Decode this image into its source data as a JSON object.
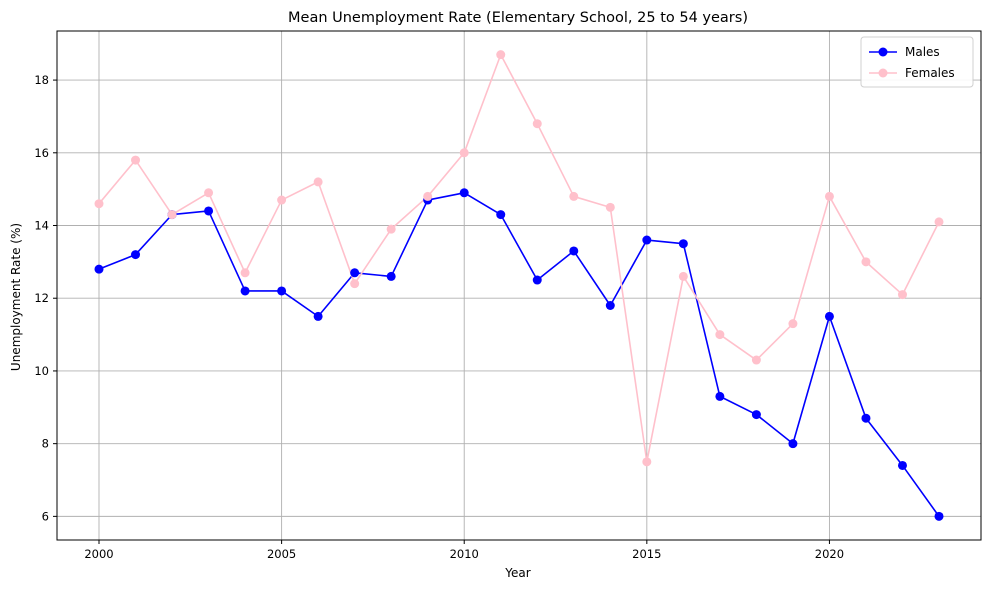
{
  "chart_data": {
    "type": "line",
    "title": "Mean Unemployment Rate (Elementary School, 25 to 54 years)",
    "xlabel": "Year",
    "ylabel": "Unemployment Rate (%)",
    "xlim": [
      1998.85,
      2024.15
    ],
    "ylim": [
      5.35,
      19.35
    ],
    "xticks": [
      2000,
      2005,
      2010,
      2015,
      2020
    ],
    "yticks": [
      6,
      8,
      10,
      12,
      14,
      16,
      18
    ],
    "grid": true,
    "legend_position": "top-right",
    "x": [
      2000,
      2001,
      2002,
      2003,
      2004,
      2005,
      2006,
      2007,
      2008,
      2009,
      2010,
      2011,
      2012,
      2013,
      2014,
      2015,
      2016,
      2017,
      2018,
      2019,
      2020,
      2021,
      2022,
      2023
    ],
    "series": [
      {
        "name": "Males",
        "color": "#0000ff",
        "values": [
          12.8,
          13.2,
          14.3,
          14.4,
          12.2,
          12.2,
          11.5,
          12.7,
          12.6,
          14.7,
          14.9,
          14.3,
          12.5,
          13.3,
          11.8,
          13.6,
          13.5,
          9.3,
          8.8,
          8.0,
          11.5,
          8.7,
          7.4,
          6.0
        ]
      },
      {
        "name": "Females",
        "color": "#ffc0cb",
        "values": [
          14.6,
          15.8,
          14.3,
          14.9,
          12.7,
          14.7,
          15.2,
          12.4,
          13.9,
          14.8,
          16.0,
          18.7,
          16.8,
          14.8,
          14.5,
          7.5,
          12.6,
          11.0,
          10.3,
          11.3,
          14.8,
          13.0,
          12.1,
          14.1
        ]
      }
    ]
  }
}
